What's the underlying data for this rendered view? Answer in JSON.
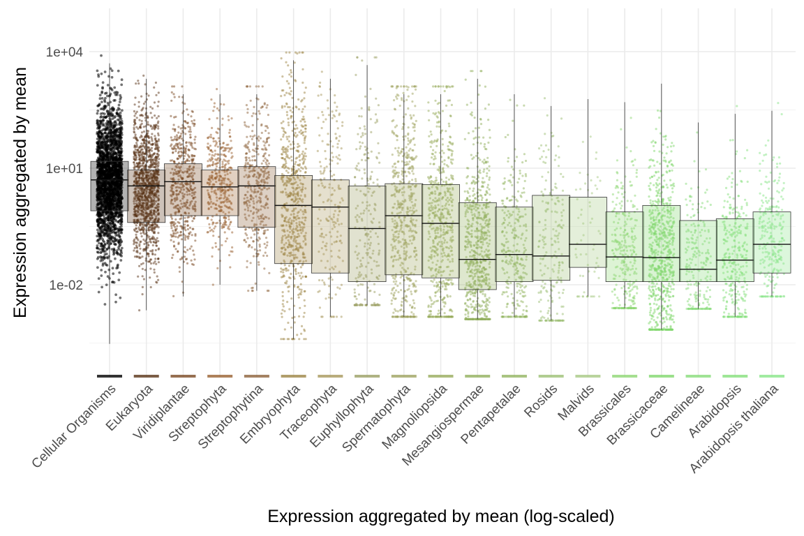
{
  "chart_data": {
    "type": "box",
    "overlay": "jittered points",
    "title": "",
    "xlabel": "Expression aggregated by mean (log-scaled)",
    "ylabel": "Expression aggregated by mean",
    "y_scale": "log10",
    "ylim": [
      5e-05,
      60000
    ],
    "y_ticks": [
      {
        "value": 0.01,
        "label": "1e-02"
      },
      {
        "value": 10,
        "label": "1e+01"
      },
      {
        "value": 10000,
        "label": "1e+04"
      }
    ],
    "grid": true,
    "legend": "none",
    "categories": [
      "Cellular Organisms",
      "Eukaryota",
      "Viridiplantae",
      "Streptophyta",
      "Streptophytina",
      "Embryophyta",
      "Traceophyta",
      "Euphyllophyta",
      "Spermatophyta",
      "Magnoliopsida",
      "Mesangiospermae",
      "Pentapetalae",
      "Rosids",
      "Malvids",
      "Brassicales",
      "Brassicaceae",
      "Camelineae",
      "Arabidopsis",
      "Arabidopsis thaliana"
    ],
    "colors": [
      "#000000",
      "#5a3418",
      "#7c4b26",
      "#9a6232",
      "#8d633c",
      "#9e8646",
      "#a8985c",
      "#9ba064",
      "#9fa460",
      "#98ab5c",
      "#92b05e",
      "#93b562",
      "#9ec076",
      "#a7c984",
      "#8ed774",
      "#82d86e",
      "#88dc7a",
      "#86e07c",
      "#8ae68a"
    ],
    "boxes": [
      {
        "category": "Cellular Organisms",
        "q1": 0.8,
        "median": 5,
        "q3": 15,
        "whisker_low": 0.0003,
        "whisker_high": 5000,
        "n_points": 2400
      },
      {
        "category": "Eukaryota",
        "q1": 0.4,
        "median": 3.5,
        "q3": 9,
        "whisker_low": 0.0022,
        "whisker_high": 2000,
        "n_points": 1200
      },
      {
        "category": "Viridiplantae",
        "q1": 0.6,
        "median": 4.5,
        "q3": 13,
        "whisker_low": 0.005,
        "whisker_high": 800,
        "n_points": 500
      },
      {
        "category": "Streptophyta",
        "q1": 0.6,
        "median": 3.3,
        "q3": 9,
        "whisker_low": 0.01,
        "whisker_high": 800,
        "n_points": 380
      },
      {
        "category": "Streptophytina",
        "q1": 0.3,
        "median": 3.5,
        "q3": 11,
        "whisker_low": 0.007,
        "whisker_high": 800,
        "n_points": 380
      },
      {
        "category": "Embryophyta",
        "q1": 0.035,
        "median": 1.1,
        "q3": 6.5,
        "whisker_low": 0.0004,
        "whisker_high": 6000,
        "n_points": 640
      },
      {
        "category": "Traceophyta",
        "q1": 0.02,
        "median": 1,
        "q3": 5,
        "whisker_low": 0.0015,
        "whisker_high": 2000,
        "n_points": 200
      },
      {
        "category": "Euphyllophyta",
        "q1": 0.012,
        "median": 0.28,
        "q3": 3.5,
        "whisker_low": 0.003,
        "whisker_high": 4500,
        "n_points": 240
      },
      {
        "category": "Spermatophyta",
        "q1": 0.018,
        "median": 0.6,
        "q3": 4,
        "whisker_low": 0.0015,
        "whisker_high": 800,
        "n_points": 560
      },
      {
        "category": "Magnoliopsida",
        "q1": 0.015,
        "median": 0.38,
        "q3": 3.8,
        "whisker_low": 0.0015,
        "whisker_high": 800,
        "n_points": 560
      },
      {
        "category": "Mesangiospermae",
        "q1": 0.0075,
        "median": 0.045,
        "q3": 1.3,
        "whisker_low": 0.0013,
        "whisker_high": 2000,
        "n_points": 720
      },
      {
        "category": "Pentapetalae",
        "q1": 0.012,
        "median": 0.06,
        "q3": 1,
        "whisker_low": 0.0015,
        "whisker_high": 800,
        "n_points": 300
      },
      {
        "category": "Rosids",
        "q1": 0.013,
        "median": 0.055,
        "q3": 2,
        "whisker_low": 0.0012,
        "whisker_high": 400,
        "n_points": 220
      },
      {
        "category": "Malvids",
        "q1": 0.028,
        "median": 0.11,
        "q3": 1.8,
        "whisker_low": 0.005,
        "whisker_high": 600,
        "n_points": 60
      },
      {
        "category": "Brassicales",
        "q1": 0.012,
        "median": 0.052,
        "q3": 0.75,
        "whisker_low": 0.0025,
        "whisker_high": 500,
        "n_points": 300
      },
      {
        "category": "Brassicaceae",
        "q1": 0.012,
        "median": 0.05,
        "q3": 1.1,
        "whisker_low": 0.0007,
        "whisker_high": 1500,
        "n_points": 720
      },
      {
        "category": "Camelineae",
        "q1": 0.012,
        "median": 0.025,
        "q3": 0.45,
        "whisker_low": 0.0024,
        "whisker_high": 150,
        "n_points": 220
      },
      {
        "category": "Arabidopsis",
        "q1": 0.012,
        "median": 0.043,
        "q3": 0.5,
        "whisker_low": 0.0015,
        "whisker_high": 250,
        "n_points": 320
      },
      {
        "category": "Arabidopsis thaliana",
        "q1": 0.02,
        "median": 0.11,
        "q3": 0.75,
        "whisker_low": 0.005,
        "whisker_high": 300,
        "n_points": 260
      }
    ]
  }
}
